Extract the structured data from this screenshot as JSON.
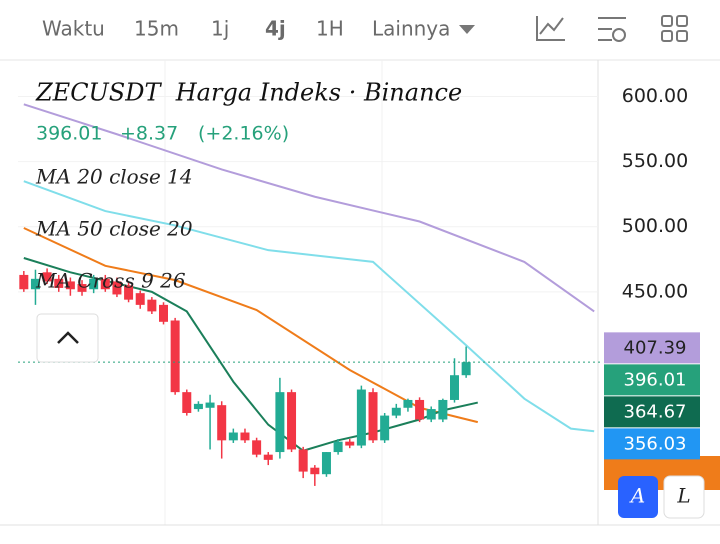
{
  "toolbar": {
    "items": [
      "Waktu",
      "15m",
      "1j",
      "4j",
      "1H",
      "Lainnya"
    ],
    "selected": 3
  },
  "chart_data": {
    "type": "candlestick",
    "title": "ZECUSDT  Harga Indeks · Binance",
    "quote": {
      "last": "396.01",
      "change": "+8.37",
      "change_pct": "(+2.16%)"
    },
    "indicators": [
      "MA 20 close 14",
      "MA 50 close 20",
      "MA Cross 9 26"
    ],
    "xlim": [
      -0.5,
      49.5
    ],
    "ylim": [
      271,
      628
    ],
    "yticks": [
      {
        "value": 600,
        "label": "600.00"
      },
      {
        "value": 550,
        "label": "550.00"
      },
      {
        "value": 500,
        "label": "500.00"
      },
      {
        "value": 450,
        "label": "450.00"
      }
    ],
    "up_color": "#22ab94",
    "down_color": "#f23645",
    "x": [
      0,
      1,
      2,
      3,
      4,
      5,
      6,
      7,
      8,
      9,
      10,
      11,
      12,
      13,
      14,
      15,
      16,
      17,
      18,
      19,
      20,
      21,
      22,
      23,
      24,
      25,
      26,
      27,
      28,
      29,
      30,
      31,
      32,
      33,
      34,
      35,
      36,
      37,
      38
    ],
    "open": [
      463,
      452,
      465,
      460,
      458,
      456,
      452,
      460,
      458,
      455,
      449,
      444,
      440,
      428,
      373,
      360,
      361,
      363,
      336,
      342,
      336,
      325,
      327,
      373,
      329,
      315,
      310,
      327,
      335,
      332,
      373,
      336,
      355,
      361,
      367,
      352,
      352,
      367,
      386
    ],
    "high": [
      466,
      467,
      468,
      463,
      461,
      459,
      463,
      463,
      461,
      457,
      451,
      446,
      442,
      430,
      375,
      366,
      371,
      366,
      345,
      345,
      338,
      327,
      384,
      375,
      331,
      317,
      327,
      337,
      337,
      378,
      376,
      357,
      364,
      368,
      369,
      362,
      368,
      399,
      408
    ],
    "low": [
      450,
      440,
      456,
      450,
      447,
      447,
      449,
      450,
      446,
      442,
      437,
      433,
      425,
      371,
      355,
      358,
      329,
      322,
      334,
      334,
      323,
      317,
      322,
      327,
      307,
      301,
      308,
      325,
      330,
      330,
      334,
      334,
      353,
      358,
      350,
      350,
      350,
      365,
      384
    ],
    "close": [
      452,
      460,
      458,
      453,
      452,
      450,
      460,
      452,
      448,
      444,
      440,
      435,
      427,
      373,
      357,
      364,
      365,
      336,
      342,
      336,
      325,
      321,
      373,
      329,
      312,
      310,
      327,
      335,
      332,
      375,
      336,
      355,
      361,
      367,
      352,
      360,
      367,
      386,
      396.01
    ],
    "lines": [
      {
        "color": "#b39ddb",
        "x": [
          0,
          8,
          17,
          25,
          34,
          43,
          49
        ],
        "values": [
          594,
          571,
          544,
          523,
          504,
          473,
          435
        ]
      },
      {
        "color": "#80deea",
        "x": [
          0,
          7,
          13,
          21,
          30,
          38,
          43,
          47,
          49
        ],
        "values": [
          535,
          512,
          501,
          482,
          473,
          409,
          368,
          345,
          343
        ]
      },
      {
        "color": "#ef7c1a",
        "x": [
          0,
          7,
          13,
          20,
          28,
          34,
          39
        ],
        "values": [
          499,
          470,
          459,
          436,
          390,
          361,
          350
        ]
      },
      {
        "color": "#1b7f5a",
        "x": [
          0,
          4,
          11,
          14,
          18,
          21,
          24,
          27,
          30,
          34,
          36,
          39
        ],
        "values": [
          476,
          465,
          450,
          435,
          381,
          348,
          328,
          336,
          342,
          352,
          359,
          365
        ]
      }
    ],
    "price_labels": [
      {
        "value": 407.39,
        "color": "#b39ddb"
      },
      {
        "value": 396.01,
        "color": "#26a17b"
      },
      {
        "value": 364.67,
        "color": "#0f6b50"
      },
      {
        "value": 356.03,
        "color": "#2196f3"
      }
    ],
    "buttons": [
      "A",
      "L"
    ]
  }
}
